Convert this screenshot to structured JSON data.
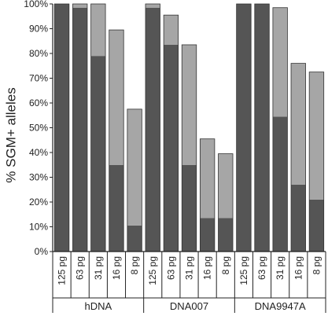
{
  "chart_data": {
    "type": "bar",
    "stacked": true,
    "ylabel": "% SGM+ alleles",
    "ylim": [
      0,
      100
    ],
    "y_ticks": [
      "0%",
      "10%",
      "20%",
      "30%",
      "40%",
      "50%",
      "60%",
      "70%",
      "80%",
      "90%",
      "100%"
    ],
    "groups": [
      {
        "label": "hDNA",
        "categories": [
          "125 pg",
          "63 pg",
          "31 pg",
          "16 pg",
          "8 pg"
        ]
      },
      {
        "label": "DNA007",
        "categories": [
          "125 pg",
          "63 pg",
          "31 pg",
          "16 pg",
          "8 pg"
        ]
      },
      {
        "label": "DNA9947A",
        "categories": [
          "125 pg",
          "63 pg",
          "31 pg",
          "16 pg",
          "8 pg"
        ]
      }
    ],
    "series": [
      {
        "color": "#555555",
        "values": [
          100,
          98.5,
          79,
          35,
          10.5,
          98.5,
          83.5,
          35,
          13.5,
          13.5,
          100,
          100,
          54.5,
          27,
          21
        ]
      },
      {
        "color": "#a6a6a6",
        "values": [
          0,
          1.5,
          21,
          54.5,
          47,
          1.5,
          12,
          48.5,
          32,
          26,
          0,
          0,
          44,
          49,
          51.5
        ]
      }
    ],
    "colors": {
      "dark": "#555555",
      "light": "#a6a6a6",
      "axis": "#222222"
    }
  }
}
